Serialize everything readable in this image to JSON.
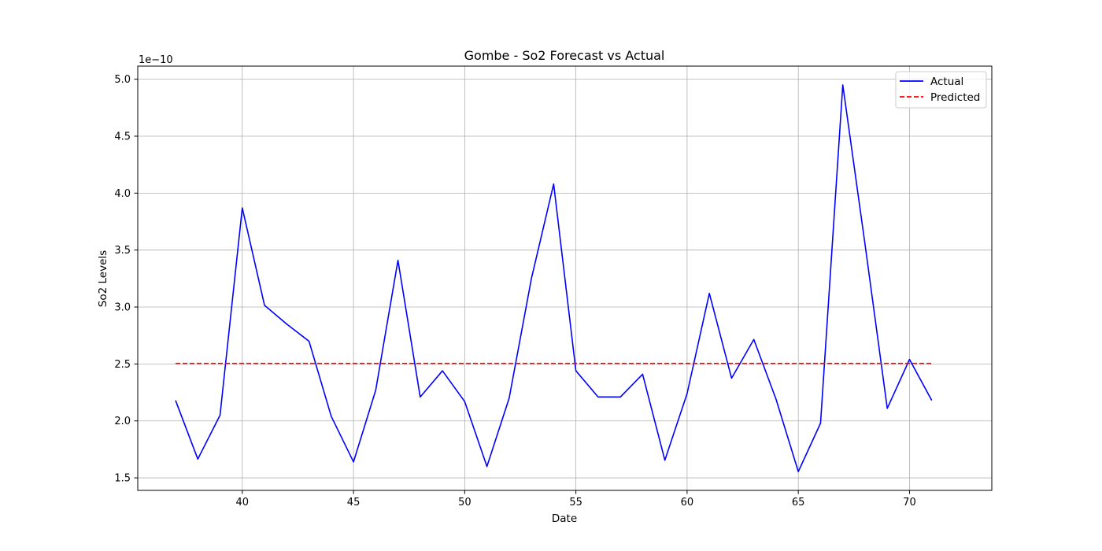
{
  "chart_data": {
    "type": "line",
    "title": "Gombe - So2 Forecast vs Actual",
    "xlabel": "Date",
    "ylabel": "So2 Levels",
    "y_offset_text": "1e−10",
    "y_scale_multiplier": 1e-10,
    "xlim": [
      35.3,
      73.7
    ],
    "ylim": [
      1.39,
      5.115
    ],
    "x_ticks": [
      40,
      45,
      50,
      55,
      60,
      65,
      70
    ],
    "x_tick_labels": [
      "40",
      "45",
      "50",
      "55",
      "60",
      "65",
      "70"
    ],
    "y_ticks": [
      1.5,
      2.0,
      2.5,
      3.0,
      3.5,
      4.0,
      4.5,
      5.0
    ],
    "y_tick_labels": [
      "1.5",
      "2.0",
      "2.5",
      "3.0",
      "3.5",
      "4.0",
      "4.5",
      "5.0"
    ],
    "grid": true,
    "legend_position": "top-right",
    "x": [
      37,
      38,
      39,
      40,
      41,
      42,
      43,
      44,
      45,
      46,
      47,
      48,
      49,
      50,
      51,
      52,
      53,
      54,
      55,
      56,
      57,
      58,
      59,
      60,
      61,
      62,
      63,
      64,
      65,
      66,
      67,
      68,
      69,
      70,
      71
    ],
    "series": [
      {
        "name": "Actual",
        "color": "#0000ff",
        "style": "solid",
        "values": [
          2.18,
          1.665,
          2.05,
          3.87,
          3.015,
          2.85,
          2.7,
          2.04,
          1.64,
          2.27,
          3.41,
          2.21,
          2.44,
          2.17,
          1.6,
          2.2,
          3.25,
          4.08,
          2.44,
          2.21,
          2.21,
          2.41,
          1.655,
          2.24,
          3.12,
          2.375,
          2.715,
          2.19,
          1.555,
          1.98,
          4.95,
          3.55,
          2.11,
          2.54,
          2.18
        ]
      },
      {
        "name": "Predicted",
        "color": "#ff0000",
        "style": "dashed",
        "values": [
          2.505,
          2.505,
          2.505,
          2.505,
          2.505,
          2.505,
          2.505,
          2.505,
          2.505,
          2.505,
          2.505,
          2.505,
          2.505,
          2.505,
          2.505,
          2.505,
          2.505,
          2.505,
          2.505,
          2.505,
          2.505,
          2.505,
          2.505,
          2.505,
          2.505,
          2.505,
          2.505,
          2.505,
          2.505,
          2.505,
          2.505,
          2.505,
          2.505,
          2.505,
          2.505
        ]
      }
    ],
    "colors": {
      "grid": "#b0b0b0",
      "axes": "#000000",
      "legend_border": "#cccccc"
    }
  }
}
